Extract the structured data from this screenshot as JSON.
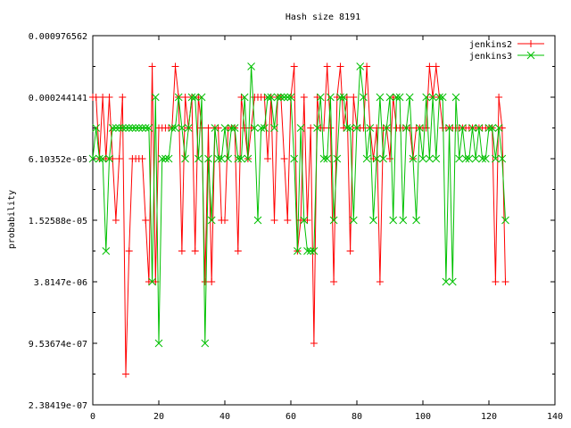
{
  "chart_data": {
    "type": "line",
    "title": "Hash size 8191",
    "xlabel": "",
    "ylabel": "probability",
    "xlim": [
      0,
      140
    ],
    "xticks": [
      0,
      20,
      40,
      60,
      80,
      100,
      120,
      140
    ],
    "yscale": "log2",
    "ylim": [
      2.38419e-07,
      0.000976562
    ],
    "ytick_values": [
      0.000976562,
      0.000244141,
      6.10352e-05,
      1.52588e-05,
      3.8147e-06,
      9.53674e-07,
      2.38419e-07
    ],
    "ytick_labels": [
      "0.000976562",
      "0.000244141",
      "6.10352e-05",
      "1.52588e-05",
      "3.8147e-06",
      "9.53674e-07",
      "2.38419e-07"
    ],
    "legend_position": "top-right",
    "series": [
      {
        "name": "jenkins2",
        "color": "#ff0000",
        "marker": "plus",
        "x": [
          0,
          1,
          2,
          3,
          4,
          5,
          6,
          7,
          8,
          9,
          10,
          11,
          12,
          13,
          14,
          15,
          16,
          17,
          18,
          19,
          20,
          21,
          22,
          23,
          24,
          25,
          26,
          27,
          28,
          29,
          30,
          31,
          32,
          33,
          34,
          35,
          36,
          37,
          38,
          39,
          40,
          41,
          42,
          43,
          44,
          45,
          46,
          47,
          48,
          49,
          50,
          51,
          52,
          53,
          54,
          55,
          56,
          57,
          58,
          59,
          60,
          61,
          62,
          63,
          64,
          65,
          66,
          67,
          68,
          69,
          70,
          71,
          72,
          73,
          74,
          75,
          76,
          77,
          78,
          79,
          80,
          81,
          82,
          83,
          84,
          85,
          86,
          87,
          88,
          89,
          90,
          91,
          92,
          93,
          94,
          95,
          96,
          97,
          98,
          99,
          100,
          101,
          102,
          103,
          104,
          105,
          106,
          107,
          108,
          109,
          110,
          111,
          112,
          113,
          114,
          115,
          116,
          117,
          118,
          119,
          120,
          121,
          122,
          123,
          124,
          125
        ],
        "values": [
          0.000244141,
          0.000244141,
          6.10352e-05,
          0.000244141,
          6.10352e-05,
          0.000244141,
          6.10352e-05,
          1.52588e-05,
          6.10352e-05,
          0.000244141,
          4.76837e-07,
          7.62939e-06,
          6.10352e-05,
          6.10352e-05,
          6.10352e-05,
          6.10352e-05,
          1.52588e-05,
          3.8147e-06,
          0.000488281,
          3.8147e-06,
          0.00012207,
          0.00012207,
          0.00012207,
          0.00012207,
          0.00012207,
          0.000488281,
          0.000244141,
          7.62939e-06,
          0.000244141,
          0.00012207,
          0.000244141,
          7.62939e-06,
          0.000244141,
          0.00012207,
          3.8147e-06,
          0.00012207,
          3.8147e-06,
          0.00012207,
          0.00012207,
          1.52588e-05,
          1.52588e-05,
          0.00012207,
          0.00012207,
          0.00012207,
          7.62939e-06,
          0.000244141,
          0.00012207,
          6.10352e-05,
          0.00012207,
          0.000244141,
          0.000244141,
          0.000244141,
          0.000244141,
          6.10352e-05,
          0.000244141,
          1.52588e-05,
          0.000244141,
          0.000244141,
          6.10352e-05,
          1.52588e-05,
          0.000244141,
          0.000488281,
          7.62939e-06,
          1.52588e-05,
          0.000244141,
          1.52588e-05,
          0.00012207,
          9.53674e-07,
          0.000244141,
          0.00012207,
          0.00012207,
          0.000488281,
          0.00012207,
          3.8147e-06,
          0.000244141,
          0.000488281,
          0.00012207,
          0.000244141,
          7.62939e-06,
          0.000244141,
          0.00012207,
          0.00012207,
          0.00012207,
          0.000488281,
          0.00012207,
          6.10352e-05,
          0.00012207,
          3.8147e-06,
          0.00012207,
          0.00012207,
          6.10352e-05,
          0.000244141,
          0.00012207,
          0.00012207,
          0.00012207,
          0.00012207,
          0.00012207,
          6.10352e-05,
          0.00012207,
          0.00012207,
          0.00012207,
          0.00012207,
          0.000488281,
          0.000244141,
          0.000488281,
          0.000244141,
          0.00012207,
          0.00012207,
          0.00012207,
          0.00012207,
          0.00012207,
          0.00012207,
          0.00012207,
          0.00012207,
          0.00012207,
          0.00012207,
          0.00012207,
          0.00012207,
          0.00012207,
          0.00012207,
          0.00012207,
          0.00012207,
          3.8147e-06,
          0.000244141,
          0.00012207,
          3.8147e-06
        ]
      },
      {
        "name": "jenkins3",
        "color": "#00c000",
        "marker": "cross",
        "x": [
          0,
          1,
          2,
          3,
          4,
          5,
          6,
          7,
          8,
          9,
          10,
          11,
          12,
          13,
          14,
          15,
          16,
          17,
          18,
          19,
          20,
          21,
          22,
          23,
          24,
          25,
          26,
          27,
          28,
          29,
          30,
          31,
          32,
          33,
          34,
          35,
          36,
          37,
          38,
          39,
          40,
          41,
          42,
          43,
          44,
          45,
          46,
          47,
          48,
          49,
          50,
          51,
          52,
          53,
          54,
          55,
          56,
          57,
          58,
          59,
          60,
          61,
          62,
          63,
          64,
          65,
          66,
          67,
          68,
          69,
          70,
          71,
          72,
          73,
          74,
          75,
          76,
          77,
          78,
          79,
          80,
          81,
          82,
          83,
          84,
          85,
          86,
          87,
          88,
          89,
          90,
          91,
          92,
          93,
          94,
          95,
          96,
          97,
          98,
          99,
          100,
          101,
          102,
          103,
          104,
          105,
          106,
          107,
          108,
          109,
          110,
          111,
          112,
          113,
          114,
          115,
          116,
          117,
          118,
          119,
          120,
          121,
          122,
          123,
          124,
          125
        ],
        "values": [
          6.10352e-05,
          0.00012207,
          6.10352e-05,
          6.10352e-05,
          7.62939e-06,
          6.10352e-05,
          0.00012207,
          0.00012207,
          0.00012207,
          0.00012207,
          0.00012207,
          0.00012207,
          0.00012207,
          0.00012207,
          0.00012207,
          0.00012207,
          0.00012207,
          0.00012207,
          3.8147e-06,
          0.000244141,
          9.53674e-07,
          6.10352e-05,
          6.10352e-05,
          6.10352e-05,
          0.00012207,
          0.00012207,
          0.000244141,
          0.00012207,
          6.10352e-05,
          0.00012207,
          0.000244141,
          0.000244141,
          6.10352e-05,
          0.000244141,
          9.53674e-07,
          6.10352e-05,
          1.52588e-05,
          0.00012207,
          6.10352e-05,
          6.10352e-05,
          0.00012207,
          6.10352e-05,
          0.00012207,
          0.00012207,
          6.10352e-05,
          6.10352e-05,
          0.000244141,
          6.10352e-05,
          0.000488281,
          0.00012207,
          1.52588e-05,
          0.00012207,
          0.00012207,
          0.000244141,
          0.000244141,
          0.00012207,
          0.000244141,
          0.000244141,
          0.000244141,
          0.000244141,
          0.000244141,
          6.10352e-05,
          7.62939e-06,
          0.00012207,
          1.52588e-05,
          7.62939e-06,
          7.62939e-06,
          7.62939e-06,
          0.00012207,
          0.000244141,
          6.10352e-05,
          6.10352e-05,
          0.000244141,
          1.52588e-05,
          6.10352e-05,
          0.000244141,
          0.000244141,
          0.00012207,
          0.00012207,
          1.52588e-05,
          0.00012207,
          0.000488281,
          0.000244141,
          6.10352e-05,
          0.00012207,
          1.52588e-05,
          6.10352e-05,
          0.000244141,
          6.10352e-05,
          0.00012207,
          0.000244141,
          1.52588e-05,
          0.000244141,
          0.000244141,
          1.52588e-05,
          0.00012207,
          0.000244141,
          6.10352e-05,
          1.52588e-05,
          0.00012207,
          6.10352e-05,
          0.000244141,
          6.10352e-05,
          0.000244141,
          6.10352e-05,
          0.000244141,
          0.000244141,
          3.8147e-06,
          0.00012207,
          3.8147e-06,
          0.000244141,
          6.10352e-05,
          0.00012207,
          6.10352e-05,
          6.10352e-05,
          0.00012207,
          6.10352e-05,
          0.00012207,
          6.10352e-05,
          6.10352e-05,
          0.00012207,
          0.00012207,
          6.10352e-05,
          0.00012207,
          6.10352e-05,
          1.52588e-05
        ]
      }
    ]
  }
}
